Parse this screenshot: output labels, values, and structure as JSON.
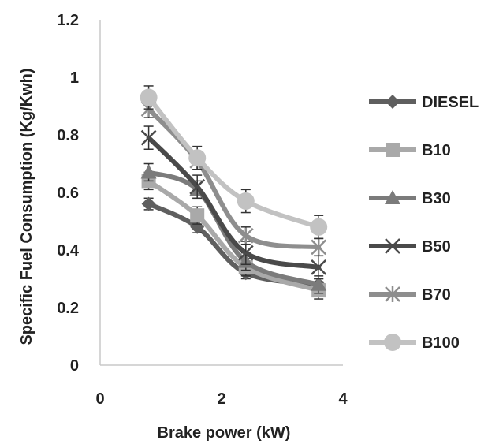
{
  "chart_data": {
    "type": "line",
    "xlabel": "Brake power (kW)",
    "ylabel": "Specific Fuel Consumption  (Kg/Kwh)",
    "xlim": [
      0,
      4
    ],
    "ylim": [
      0,
      1.2
    ],
    "x_ticks": [
      "0",
      "2",
      "4"
    ],
    "y_ticks": [
      "0",
      "0.2",
      "0.4",
      "0.6",
      "0.8",
      "1",
      "1.2"
    ],
    "grid": false,
    "legend_position": "right",
    "x": [
      0.8,
      1.6,
      2.4,
      3.6
    ],
    "series": [
      {
        "name": "DIESEL",
        "values": [
          0.56,
          0.48,
          0.32,
          0.28
        ],
        "color": "#5f5f5f",
        "marker": "diamond",
        "error": 0.02
      },
      {
        "name": "B10",
        "values": [
          0.64,
          0.52,
          0.34,
          0.26
        ],
        "color": "#a9a9a9",
        "marker": "square",
        "error": 0.03
      },
      {
        "name": "B30",
        "values": [
          0.67,
          0.61,
          0.36,
          0.28
        ],
        "color": "#7b7b7b",
        "marker": "triangle",
        "error": 0.03
      },
      {
        "name": "B50",
        "values": [
          0.79,
          0.62,
          0.39,
          0.34
        ],
        "color": "#4a4a4a",
        "marker": "x",
        "error": 0.04
      },
      {
        "name": "B70",
        "values": [
          0.89,
          0.71,
          0.45,
          0.41
        ],
        "color": "#8e8e8e",
        "marker": "star",
        "error": 0.03
      },
      {
        "name": "B100",
        "values": [
          0.93,
          0.72,
          0.57,
          0.48
        ],
        "color": "#c2c2c2",
        "marker": "circle",
        "error": 0.04
      }
    ]
  }
}
